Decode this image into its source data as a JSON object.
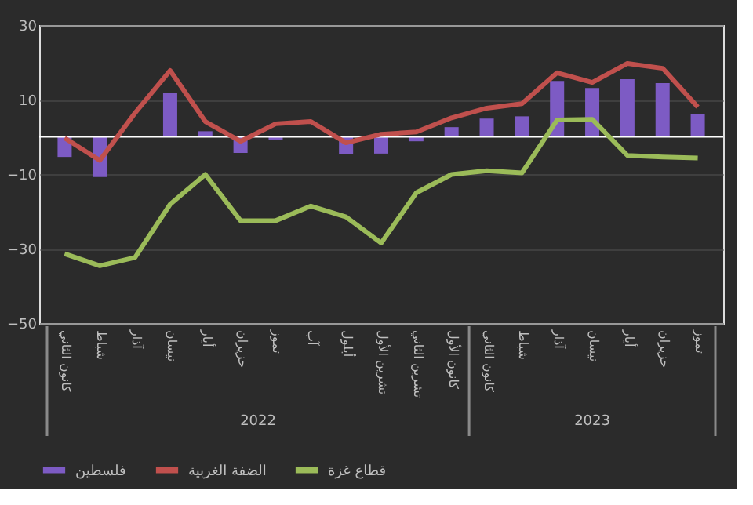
{
  "chart_data": {
    "type": "bar",
    "categories": [
      "كانون الثاني",
      "شباط",
      "آذار",
      "نيسان",
      "أيار",
      "حزيران",
      "تموز",
      "آب",
      "أيلول",
      "تشرين الأول",
      "تشرين الثاني",
      "كانون الأول",
      "كانون الثاني",
      "شباط",
      "آذار",
      "نيسان",
      "أيار",
      "حزيران",
      "تموز"
    ],
    "series": [
      {
        "name": "فلسطين",
        "color": "#7d5bc4",
        "values": [
          -5.4,
          -10.8,
          0,
          11.8,
          1.5,
          -4.3,
          -0.9,
          0,
          -4.7,
          -4.5,
          -1.2,
          2.6,
          4.9,
          5.5,
          15,
          13.1,
          15.5,
          14.4,
          6
        ]
      },
      {
        "name": "الضفة الغربية",
        "type": "line",
        "color": "#c0504d",
        "values": [
          -0.3,
          -6.3,
          6.4,
          17.8,
          4.1,
          -1.2,
          3.5,
          4.1,
          -1.6,
          0.7,
          1.3,
          5.1,
          7.7,
          8.9,
          17.2,
          14.6,
          19.7,
          18.4,
          8
        ]
      },
      {
        "name": "قطاع غزة",
        "type": "line",
        "color": "#9bbb59",
        "values": [
          -31.4,
          -34.6,
          -32.4,
          -18.1,
          -10.1,
          -22.5,
          -22.5,
          -18.6,
          -21.5,
          -28.5,
          -15,
          -10.1,
          -9.1,
          -9.7,
          4.5,
          4.7,
          -5,
          -5.4,
          -5.7
        ]
      }
    ],
    "ylim": [
      -50,
      30
    ],
    "yticks": [
      -50,
      -30,
      -10,
      10,
      30
    ],
    "grid": "y",
    "ref_lines": [
      {
        "axis": "y",
        "value": 0,
        "color": "#ffffff"
      }
    ],
    "annotations": [
      "2022",
      "2023"
    ],
    "legend": "bottom"
  }
}
